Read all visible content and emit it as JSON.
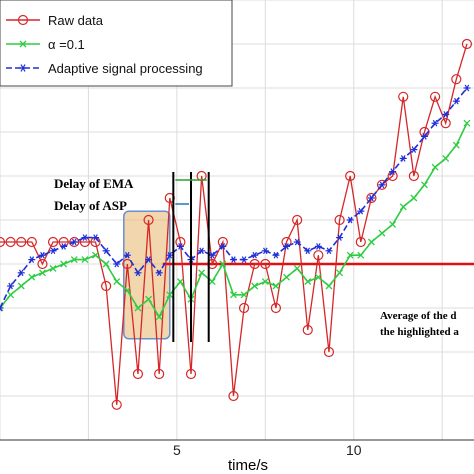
{
  "chart_data": {
    "type": "line",
    "xlabel": "time/s",
    "ylabel": "",
    "xlim": [
      0,
      13.4
    ],
    "ylim": [
      0,
      1
    ],
    "x_ticks": [
      5,
      10
    ],
    "grid": true,
    "legend_position": "top-left",
    "legend": [
      "Raw data",
      "α =0.1",
      "Adaptive signal processing"
    ],
    "annotations": {
      "delay_ema": "Delay of EMA",
      "delay_asp": "Delay of ASP",
      "average_line1": "Average of the d",
      "average_line2": "the highlighted a"
    },
    "average_level": 0.4,
    "highlight_region": {
      "x_start": 3.5,
      "x_end": 4.8,
      "y_low": 0.23,
      "y_high": 0.52
    },
    "delay_markers_x": [
      4.9,
      5.4,
      5.9
    ],
    "series": [
      {
        "name": "Raw data",
        "color": "#d62728",
        "x": [
          0,
          0.3,
          0.6,
          0.9,
          1.2,
          1.5,
          1.8,
          2.1,
          2.4,
          2.7,
          3.0,
          3.3,
          3.6,
          3.9,
          4.2,
          4.5,
          4.8,
          5.1,
          5.4,
          5.7,
          6.0,
          6.3,
          6.6,
          6.9,
          7.2,
          7.5,
          7.8,
          8.1,
          8.4,
          8.7,
          9.0,
          9.3,
          9.6,
          9.9,
          10.2,
          10.5,
          10.8,
          11.1,
          11.4,
          11.7,
          12.0,
          12.3,
          12.6,
          12.9,
          13.2
        ],
        "y": [
          0.45,
          0.45,
          0.45,
          0.45,
          0.4,
          0.45,
          0.45,
          0.45,
          0.45,
          0.45,
          0.35,
          0.08,
          0.4,
          0.15,
          0.5,
          0.15,
          0.55,
          0.45,
          0.15,
          0.6,
          0.4,
          0.45,
          0.1,
          0.3,
          0.4,
          0.4,
          0.3,
          0.45,
          0.5,
          0.25,
          0.42,
          0.2,
          0.5,
          0.6,
          0.45,
          0.55,
          0.58,
          0.6,
          0.78,
          0.6,
          0.7,
          0.78,
          0.72,
          0.82,
          0.9
        ]
      },
      {
        "name": "α =0.1",
        "color": "#2ecc40",
        "x": [
          0,
          0.3,
          0.6,
          0.9,
          1.2,
          1.5,
          1.8,
          2.1,
          2.4,
          2.7,
          3.0,
          3.3,
          3.6,
          3.9,
          4.2,
          4.5,
          4.8,
          5.1,
          5.4,
          5.7,
          6.0,
          6.3,
          6.6,
          6.9,
          7.2,
          7.5,
          7.8,
          8.1,
          8.4,
          8.7,
          9.0,
          9.3,
          9.6,
          9.9,
          10.2,
          10.5,
          10.8,
          11.1,
          11.4,
          11.7,
          12.0,
          12.3,
          12.6,
          12.9,
          13.2
        ],
        "y": [
          0.3,
          0.33,
          0.35,
          0.37,
          0.38,
          0.39,
          0.4,
          0.41,
          0.41,
          0.42,
          0.4,
          0.36,
          0.34,
          0.3,
          0.32,
          0.28,
          0.33,
          0.36,
          0.32,
          0.38,
          0.36,
          0.4,
          0.33,
          0.33,
          0.35,
          0.36,
          0.35,
          0.37,
          0.39,
          0.36,
          0.37,
          0.35,
          0.38,
          0.42,
          0.42,
          0.45,
          0.47,
          0.49,
          0.53,
          0.55,
          0.58,
          0.62,
          0.64,
          0.67,
          0.72
        ]
      },
      {
        "name": "Adaptive signal processing",
        "color": "#1f2fd8",
        "x": [
          0,
          0.3,
          0.6,
          0.9,
          1.2,
          1.5,
          1.8,
          2.1,
          2.4,
          2.7,
          3.0,
          3.3,
          3.6,
          3.9,
          4.2,
          4.5,
          4.8,
          5.1,
          5.4,
          5.7,
          6.0,
          6.3,
          6.6,
          6.9,
          7.2,
          7.5,
          7.8,
          8.1,
          8.4,
          8.7,
          9.0,
          9.3,
          9.6,
          9.9,
          10.2,
          10.5,
          10.8,
          11.1,
          11.4,
          11.7,
          12.0,
          12.3,
          12.6,
          12.9,
          13.2
        ],
        "y": [
          0.3,
          0.35,
          0.38,
          0.41,
          0.42,
          0.43,
          0.44,
          0.45,
          0.46,
          0.46,
          0.43,
          0.4,
          0.42,
          0.38,
          0.41,
          0.38,
          0.42,
          0.44,
          0.41,
          0.43,
          0.42,
          0.44,
          0.41,
          0.41,
          0.42,
          0.43,
          0.42,
          0.44,
          0.45,
          0.43,
          0.44,
          0.43,
          0.46,
          0.5,
          0.52,
          0.55,
          0.58,
          0.61,
          0.64,
          0.66,
          0.69,
          0.72,
          0.74,
          0.77,
          0.8
        ]
      }
    ]
  }
}
